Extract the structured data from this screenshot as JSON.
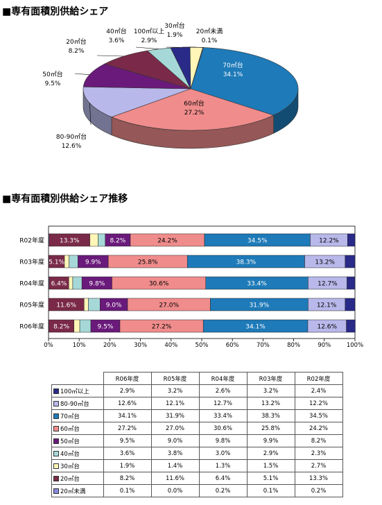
{
  "titles": {
    "pie": "■専有面積別供給シェア",
    "bar": "■専有面積別供給シェア推移"
  },
  "colors": {
    "100㎡以上": "#2a2a88",
    "80-90㎡台": "#b8b8ea",
    "70㎡台": "#1e7ab8",
    "60㎡台": "#f08c8c",
    "50㎡台": "#6a1a7a",
    "40㎡台": "#a6d8d8",
    "30㎡台": "#fff6b8",
    "20㎡台": "#7a2a48",
    "20㎡未満": "#8888e0"
  },
  "chart_data": [
    {
      "type": "pie",
      "slices": [
        {
          "label": "70㎡台",
          "value": 34.1,
          "text": "34.1%"
        },
        {
          "label": "60㎡台",
          "value": 27.2,
          "text": "27.2%"
        },
        {
          "label": "80-90㎡台",
          "value": 12.6,
          "text": "12.6%"
        },
        {
          "label": "50㎡台",
          "value": 9.5,
          "text": "9.5%"
        },
        {
          "label": "20㎡台",
          "value": 8.2,
          "text": "8.2%"
        },
        {
          "label": "40㎡台",
          "value": 3.6,
          "text": "3.6%"
        },
        {
          "label": "100㎡以上",
          "value": 2.9,
          "text": "2.9%"
        },
        {
          "label": "30㎡台",
          "value": 1.9,
          "text": "1.9%"
        },
        {
          "label": "20㎡未満",
          "value": 0.1,
          "text": "0.1%"
        }
      ]
    },
    {
      "type": "bar",
      "orientation": "horizontal",
      "stacked": "percent",
      "categories": [
        "R02年度",
        "R03年度",
        "R04年度",
        "R05年度",
        "R06年度"
      ],
      "xticks": [
        "0%",
        "10%",
        "20%",
        "30%",
        "40%",
        "50%",
        "60%",
        "70%",
        "80%",
        "90%",
        "100%"
      ],
      "xlim": [
        0,
        100
      ],
      "series": [
        {
          "name": "20㎡未満",
          "values": [
            0.2,
            0.1,
            0.2,
            0.0,
            0.1
          ]
        },
        {
          "name": "20㎡台",
          "values": [
            13.3,
            5.1,
            6.4,
            11.6,
            8.2
          ]
        },
        {
          "name": "30㎡台",
          "values": [
            2.7,
            1.5,
            1.3,
            1.4,
            1.9
          ]
        },
        {
          "name": "40㎡台",
          "values": [
            2.3,
            2.9,
            3.0,
            3.8,
            3.6
          ]
        },
        {
          "name": "50㎡台",
          "values": [
            8.2,
            9.9,
            9.8,
            9.0,
            9.5
          ]
        },
        {
          "name": "60㎡台",
          "values": [
            24.2,
            25.8,
            30.6,
            27.0,
            27.2
          ]
        },
        {
          "name": "70㎡台",
          "values": [
            34.5,
            38.3,
            33.4,
            31.9,
            34.1
          ]
        },
        {
          "name": "80-90㎡台",
          "values": [
            12.2,
            13.2,
            12.7,
            12.1,
            12.6
          ]
        },
        {
          "name": "100㎡以上",
          "values": [
            2.4,
            3.2,
            2.6,
            3.2,
            2.9
          ]
        }
      ],
      "labeled_series": [
        "20㎡台",
        "50㎡台",
        "60㎡台",
        "70㎡台",
        "80-90㎡台"
      ]
    },
    {
      "type": "table",
      "columns": [
        "R06年度",
        "R05年度",
        "R04年度",
        "R03年度",
        "R02年度"
      ],
      "rows": [
        {
          "label": "100㎡以上",
          "values": [
            "2.9%",
            "3.2%",
            "2.6%",
            "3.2%",
            "2.4%"
          ]
        },
        {
          "label": "80-90㎡台",
          "values": [
            "12.6%",
            "12.1%",
            "12.7%",
            "13.2%",
            "12.2%"
          ]
        },
        {
          "label": "70㎡台",
          "values": [
            "34.1%",
            "31.9%",
            "33.4%",
            "38.3%",
            "34.5%"
          ]
        },
        {
          "label": "60㎡台",
          "values": [
            "27.2%",
            "27.0%",
            "30.6%",
            "25.8%",
            "24.2%"
          ]
        },
        {
          "label": "50㎡台",
          "values": [
            "9.5%",
            "9.0%",
            "9.8%",
            "9.9%",
            "8.2%"
          ]
        },
        {
          "label": "40㎡台",
          "values": [
            "3.6%",
            "3.8%",
            "3.0%",
            "2.9%",
            "2.3%"
          ]
        },
        {
          "label": "30㎡台",
          "values": [
            "1.9%",
            "1.4%",
            "1.3%",
            "1.5%",
            "2.7%"
          ]
        },
        {
          "label": "20㎡台",
          "values": [
            "8.2%",
            "11.6%",
            "6.4%",
            "5.1%",
            "13.3%"
          ]
        },
        {
          "label": "20㎡未満",
          "values": [
            "0.1%",
            "0.0%",
            "0.2%",
            "0.1%",
            "0.2%"
          ]
        }
      ]
    }
  ]
}
